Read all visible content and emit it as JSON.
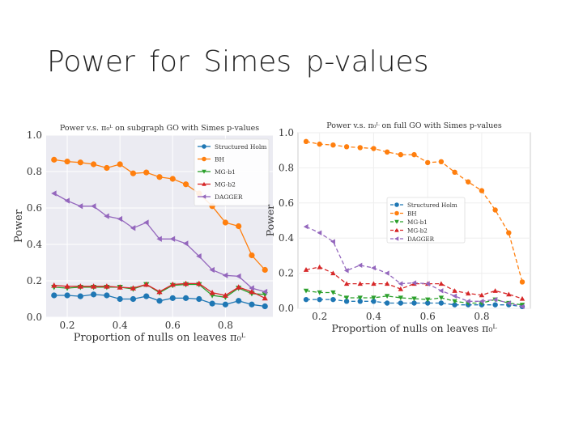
{
  "slide": {
    "title": "Power  for  Simes  p-values"
  },
  "colors": {
    "structured_holm": "#1f77b4",
    "bh": "#ff7f0e",
    "mg_b1": "#2ca02c",
    "mg_b2": "#d62728",
    "dagger": "#9467bd"
  },
  "chart_data": [
    {
      "type": "line",
      "title": "Power v.s. π₀ᴸ on subgraph GO with Simes p-values",
      "xlabel": "Proportion of nulls on leaves π₀ᴸ",
      "ylabel": "Power",
      "xlim": [
        0.12,
        0.98
      ],
      "ylim": [
        0.0,
        1.0
      ],
      "xticks": [
        "0.2",
        "0.4",
        "0.6",
        "0.8"
      ],
      "xtick_values": [
        0.2,
        0.4,
        0.6,
        0.8
      ],
      "yticks": [
        "0.0",
        "0.2",
        "0.4",
        "0.6",
        "0.8",
        "1.0"
      ],
      "ytick_values": [
        0.0,
        0.2,
        0.4,
        0.6,
        0.8,
        1.0
      ],
      "legend_position": "top-right",
      "x": [
        0.15,
        0.2,
        0.25,
        0.3,
        0.35,
        0.4,
        0.45,
        0.5,
        0.55,
        0.6,
        0.65,
        0.7,
        0.75,
        0.8,
        0.85,
        0.9,
        0.95
      ],
      "series": [
        {
          "name": "Structured Holm",
          "color": "#1f77b4",
          "marker": "circle",
          "dashed": false,
          "values": [
            0.12,
            0.12,
            0.115,
            0.125,
            0.12,
            0.1,
            0.1,
            0.115,
            0.09,
            0.105,
            0.105,
            0.1,
            0.075,
            0.07,
            0.09,
            0.07,
            0.06
          ]
        },
        {
          "name": "BH",
          "color": "#ff7f0e",
          "marker": "circle",
          "dashed": false,
          "values": [
            0.865,
            0.855,
            0.85,
            0.84,
            0.82,
            0.84,
            0.79,
            0.795,
            0.77,
            0.76,
            0.73,
            0.68,
            0.61,
            0.52,
            0.5,
            0.34,
            0.26
          ]
        },
        {
          "name": "MG-b1",
          "color": "#2ca02c",
          "marker": "triangle-down",
          "dashed": false,
          "values": [
            0.165,
            0.16,
            0.165,
            0.165,
            0.165,
            0.165,
            0.155,
            0.18,
            0.135,
            0.175,
            0.18,
            0.18,
            0.12,
            0.11,
            0.16,
            0.13,
            0.125
          ]
        },
        {
          "name": "MG-b2",
          "color": "#d62728",
          "marker": "triangle-up",
          "dashed": false,
          "values": [
            0.175,
            0.17,
            0.17,
            0.17,
            0.17,
            0.165,
            0.16,
            0.18,
            0.14,
            0.18,
            0.185,
            0.185,
            0.135,
            0.12,
            0.165,
            0.14,
            0.105
          ]
        },
        {
          "name": "DAGGER",
          "color": "#9467bd",
          "marker": "triangle-left",
          "dashed": false,
          "values": [
            0.68,
            0.64,
            0.61,
            0.61,
            0.555,
            0.54,
            0.49,
            0.52,
            0.43,
            0.43,
            0.405,
            0.335,
            0.26,
            0.23,
            0.225,
            0.16,
            0.14
          ]
        }
      ]
    },
    {
      "type": "line",
      "title": "Power v.s. π₀ᴸ on full GO with Simes p-values",
      "xlabel": "Proportion of nulls on leaves π₀ᴸ",
      "ylabel": "Power",
      "xlim": [
        0.12,
        0.98
      ],
      "ylim": [
        0.0,
        1.0
      ],
      "xticks": [
        "0.2",
        "0.4",
        "0.6",
        "0.8"
      ],
      "xtick_values": [
        0.2,
        0.4,
        0.6,
        0.8
      ],
      "yticks": [
        "0.0",
        "0.2",
        "0.4",
        "0.6",
        "0.8",
        "1.0"
      ],
      "ytick_values": [
        0.0,
        0.2,
        0.4,
        0.6,
        0.8,
        1.0
      ],
      "legend_position": "center-left",
      "x": [
        0.15,
        0.2,
        0.25,
        0.3,
        0.35,
        0.4,
        0.45,
        0.5,
        0.55,
        0.6,
        0.65,
        0.7,
        0.75,
        0.8,
        0.85,
        0.9,
        0.95
      ],
      "series": [
        {
          "name": "Structured Holm",
          "color": "#1f77b4",
          "marker": "circle",
          "dashed": true,
          "values": [
            0.05,
            0.05,
            0.05,
            0.04,
            0.04,
            0.04,
            0.03,
            0.03,
            0.03,
            0.03,
            0.03,
            0.02,
            0.02,
            0.02,
            0.02,
            0.02,
            0.01
          ]
        },
        {
          "name": "BH",
          "color": "#ff7f0e",
          "marker": "circle",
          "dashed": true,
          "values": [
            0.95,
            0.935,
            0.93,
            0.92,
            0.915,
            0.91,
            0.89,
            0.875,
            0.875,
            0.83,
            0.835,
            0.775,
            0.72,
            0.67,
            0.56,
            0.43,
            0.15
          ]
        },
        {
          "name": "MG-b1",
          "color": "#2ca02c",
          "marker": "triangle-down",
          "dashed": true,
          "values": [
            0.1,
            0.09,
            0.09,
            0.06,
            0.06,
            0.06,
            0.07,
            0.06,
            0.055,
            0.05,
            0.06,
            0.04,
            0.03,
            0.03,
            0.05,
            0.03,
            0.02
          ]
        },
        {
          "name": "MG-b2",
          "color": "#d62728",
          "marker": "triangle-up",
          "dashed": true,
          "values": [
            0.22,
            0.235,
            0.2,
            0.14,
            0.14,
            0.14,
            0.14,
            0.11,
            0.14,
            0.14,
            0.14,
            0.1,
            0.085,
            0.075,
            0.1,
            0.08,
            0.055
          ]
        },
        {
          "name": "DAGGER",
          "color": "#9467bd",
          "marker": "triangle-left",
          "dashed": true,
          "values": [
            0.465,
            0.43,
            0.38,
            0.215,
            0.245,
            0.23,
            0.2,
            0.14,
            0.145,
            0.14,
            0.1,
            0.07,
            0.04,
            0.04,
            0.05,
            0.03,
            0.01
          ]
        }
      ]
    }
  ]
}
